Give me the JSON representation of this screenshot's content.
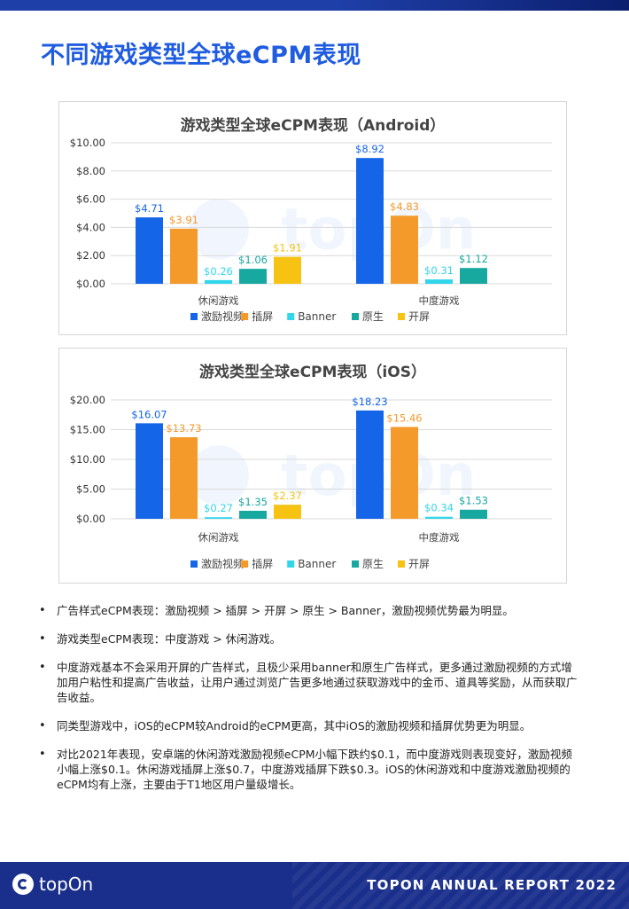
{
  "page": {
    "title": "不同游戏类型全球eCPM表现"
  },
  "watermark": {
    "text": "topOn"
  },
  "chart_data": [
    {
      "type": "bar",
      "title": "游戏类型全球eCPM表现（Android）",
      "categories": [
        "休闲游戏",
        "中度游戏"
      ],
      "series": [
        {
          "name": "激励视频",
          "values": [
            4.71,
            8.92
          ],
          "labels": [
            "$4.71",
            "$8.92"
          ],
          "color": "#1565e8"
        },
        {
          "name": "插屏",
          "values": [
            3.91,
            4.83
          ],
          "labels": [
            "$3.91",
            "$4.83"
          ],
          "color": "#f39a2b"
        },
        {
          "name": "Banner",
          "values": [
            0.26,
            0.31
          ],
          "labels": [
            "$0.26",
            "$0.31"
          ],
          "color": "#32d6ea"
        },
        {
          "name": "原生",
          "values": [
            1.06,
            1.12
          ],
          "labels": [
            "$1.06",
            "$1.12"
          ],
          "color": "#17a8a0"
        },
        {
          "name": "开屏",
          "values": [
            1.91,
            null
          ],
          "labels": [
            "$1.91",
            ""
          ],
          "color": "#f6c312"
        }
      ],
      "yticks": [
        "$10.00",
        "$8.00",
        "$6.00",
        "$4.00",
        "$2.00",
        "$0.00"
      ],
      "ylim": [
        0,
        10
      ],
      "grid": true,
      "legend": "bottom"
    },
    {
      "type": "bar",
      "title": "游戏类型全球eCPM表现（iOS）",
      "categories": [
        "休闲游戏",
        "中度游戏"
      ],
      "series": [
        {
          "name": "激励视频",
          "values": [
            16.07,
            18.23
          ],
          "labels": [
            "$16.07",
            "$18.23"
          ],
          "color": "#1565e8"
        },
        {
          "name": "插屏",
          "values": [
            13.73,
            15.46
          ],
          "labels": [
            "$13.73",
            "$15.46"
          ],
          "color": "#f39a2b"
        },
        {
          "name": "Banner",
          "values": [
            0.27,
            0.34
          ],
          "labels": [
            "$0.27",
            "$0.34"
          ],
          "color": "#32d6ea"
        },
        {
          "name": "原生",
          "values": [
            1.35,
            1.53
          ],
          "labels": [
            "$1.35",
            "$1.53"
          ],
          "color": "#17a8a0"
        },
        {
          "name": "开屏",
          "values": [
            2.37,
            null
          ],
          "labels": [
            "$2.37",
            ""
          ],
          "color": "#f6c312"
        }
      ],
      "yticks": [
        "$20.00",
        "$15.00",
        "$10.00",
        "$5.00",
        "$0.00"
      ],
      "ylim": [
        0,
        20
      ],
      "grid": true,
      "legend": "bottom"
    }
  ],
  "bullets": [
    "广告样式eCPM表现：激励视频 > 插屏 > 开屏 > 原生 > Banner，激励视频优势最为明显。",
    "游戏类型eCPM表现：中度游戏 > 休闲游戏。",
    "中度游戏基本不会采用开屏的广告样式，且极少采用banner和原生广告样式，更多通过激励视频的方式增加用户粘性和提高广告收益，让用户通过浏览广告更多地通过获取游戏中的金币、道具等奖励，从而获取广告收益。",
    "同类型游戏中，iOS的eCPM较Android的eCPM更高，其中iOS的激励视频和插屏优势更为明显。",
    "对比2021年表现，安卓端的休闲游戏激励视频eCPM小幅下跌约$0.1，而中度游戏则表现变好，激励视频小幅上涨$0.1。休闲游戏插屏上涨$0.7，中度游戏插屏下跌$0.3。iOS的休闲游戏和中度游戏激励视频的eCPM均有上涨，主要由于T1地区用户量级增长。"
  ],
  "footer": {
    "logo_text": "topOn",
    "report_title": "TOPON ANNUAL REPORT 2022"
  }
}
